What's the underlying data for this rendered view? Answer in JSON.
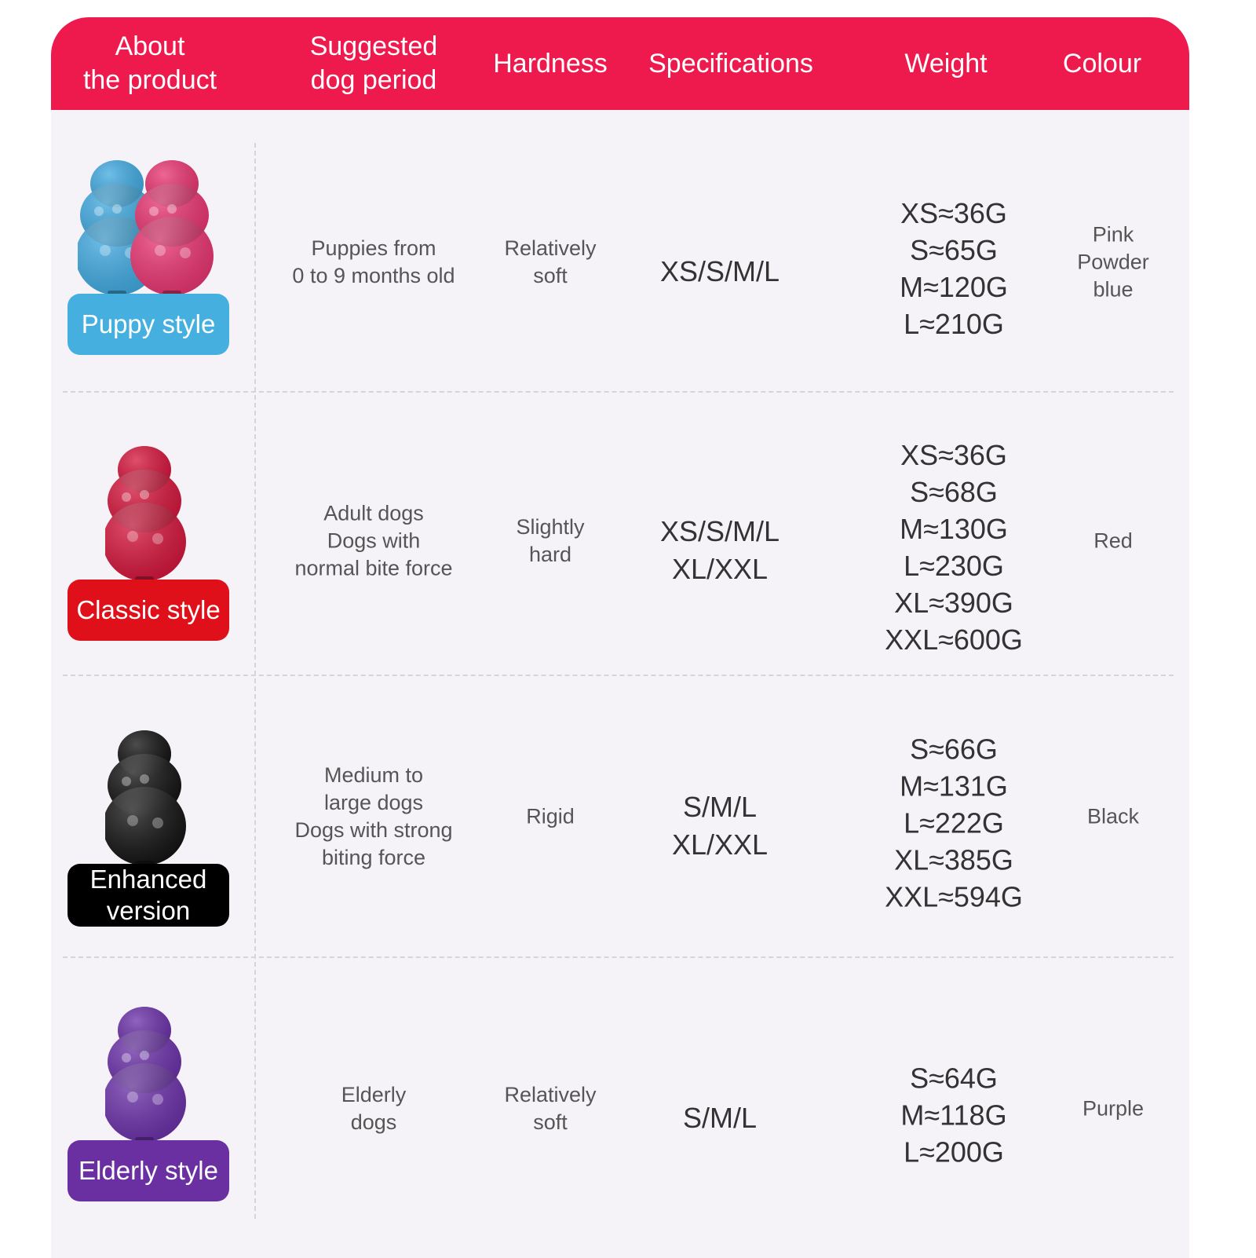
{
  "header": [
    "About\nthe product",
    "Suggested\ndog period",
    "Hardness",
    "Specifications",
    "Weight",
    "Colour"
  ],
  "colors": {
    "header": "#ee1a4d",
    "puppy_badge": "#45afe0",
    "classic_badge": "#e0101a",
    "enhanced_badge": "#000000",
    "elderly_badge": "#6a2fa0"
  },
  "rows": [
    {
      "style": "Puppy style",
      "period": "Puppies from\n0 to 9 months old",
      "hardness": "Relatively\nsoft",
      "specs": "XS/S/M/L",
      "weights": "XS≈36G\nS≈65G\nM≈120G\nL≈210G",
      "colour": "Pink\nPowder\nblue",
      "toy_colors": [
        "#3fa9e0",
        "#e8336f"
      ]
    },
    {
      "style": "Classic style",
      "period": "Adult dogs\nDogs with\nnormal bite force",
      "hardness": "Slightly\nhard",
      "specs": "XS/S/M/L\nXL/XXL",
      "weights": "XS≈36G\nS≈68G\nM≈130G\nL≈230G\nXL≈390G\nXXL≈600G",
      "colour": "Red",
      "toy_colors": [
        "#d4143a"
      ]
    },
    {
      "style": "Enhanced\nversion",
      "period": "Medium to\nlarge dogs\nDogs with strong\nbiting force",
      "hardness": "Rigid",
      "specs": "S/M/L\nXL/XXL",
      "weights": "S≈66G\nM≈131G\nL≈222G\nXL≈385G\nXXL≈594G",
      "colour": "Black",
      "toy_colors": [
        "#111111"
      ]
    },
    {
      "style": "Elderly style",
      "period": "Elderly\ndogs",
      "hardness": "Relatively\nsoft",
      "specs": "S/M/L",
      "weights": "S≈64G\nM≈118G\nL≈200G",
      "colour": "Purple",
      "toy_colors": [
        "#6a2fa8"
      ]
    }
  ]
}
